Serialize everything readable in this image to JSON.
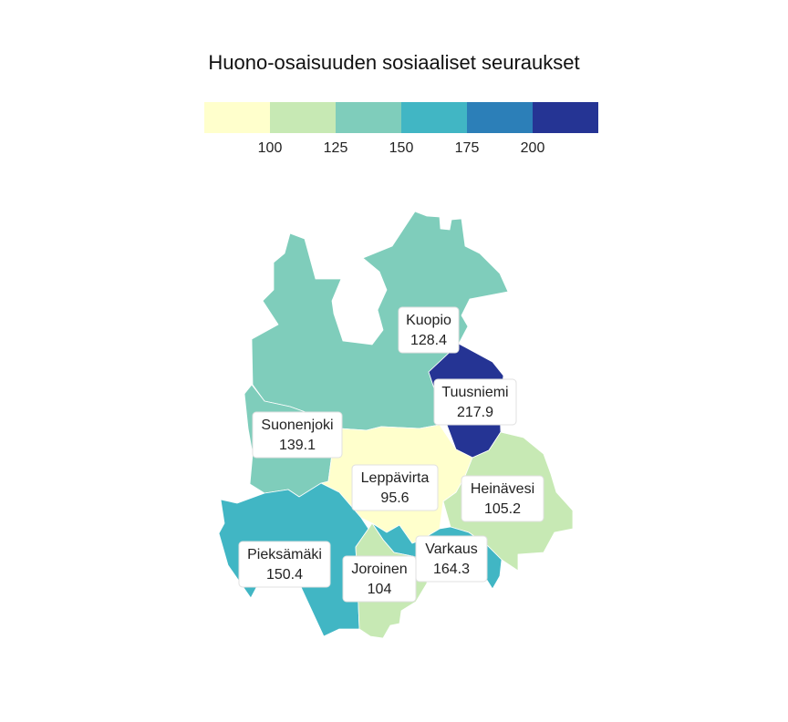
{
  "chart_data": {
    "type": "choropleth",
    "title": "Huono-osaisuuden sosiaaliset seuraukset",
    "legend": {
      "breaks": [
        100,
        125,
        150,
        175,
        200
      ],
      "tick_labels": [
        "100",
        "125",
        "150",
        "175",
        "200"
      ],
      "colors": [
        "#ffffcc",
        "#c7e9b4",
        "#7fcdbb",
        "#41b6c4",
        "#2c7fb8",
        "#253494"
      ]
    },
    "regions": [
      {
        "name": "Kuopio",
        "value": 128.4
      },
      {
        "name": "Tuusniemi",
        "value": 217.9
      },
      {
        "name": "Suonenjoki",
        "value": 139.1
      },
      {
        "name": "Leppävirta",
        "value": 95.6
      },
      {
        "name": "Heinävesi",
        "value": 105.2
      },
      {
        "name": "Pieksämäki",
        "value": 150.4
      },
      {
        "name": "Varkaus",
        "value": 164.3
      },
      {
        "name": "Joroinen",
        "value": 104
      }
    ]
  }
}
